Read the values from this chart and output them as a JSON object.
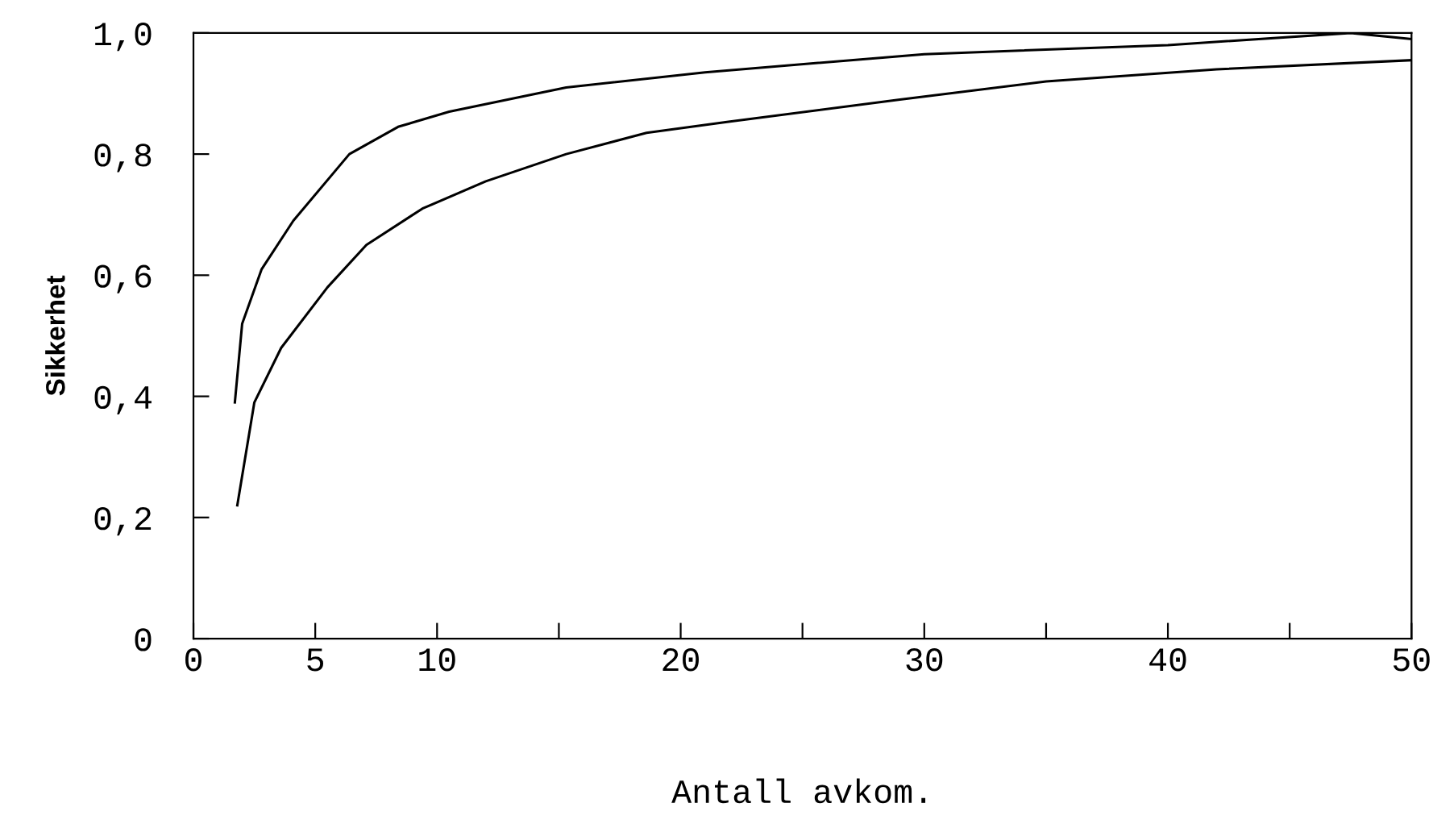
{
  "chart_data": {
    "type": "line",
    "xlabel": "Antall avkom.",
    "ylabel": "Sikkerhet",
    "xlim": [
      0,
      50
    ],
    "ylim": [
      0,
      1.0
    ],
    "xticks": [
      0,
      5,
      10,
      {
        "value": 15,
        "label": null
      },
      20,
      {
        "value": 25,
        "label": null
      },
      30,
      {
        "value": 35,
        "label": null
      },
      40,
      {
        "value": 45,
        "label": null
      },
      50
    ],
    "yticks": [
      {
        "value": 0,
        "label": "0"
      },
      {
        "value": 0.2,
        "label": "0,2"
      },
      {
        "value": 0.4,
        "label": "0,4"
      },
      {
        "value": 0.6,
        "label": "0,6"
      },
      {
        "value": 0.8,
        "label": "0,8"
      },
      {
        "value": 1.0,
        "label": "1,0"
      }
    ],
    "grid": false,
    "legend": false,
    "marker": "none",
    "line_style": "solid",
    "series": [
      {
        "color": "#000000",
        "x": [
          1.7,
          2,
          2.8,
          4.1,
          6.4,
          8.4,
          10.5,
          15.3,
          21,
          30,
          40,
          47.5,
          50
        ],
        "values": [
          0.39,
          0.52,
          0.61,
          0.69,
          0.8,
          0.845,
          0.87,
          0.91,
          0.935,
          0.965,
          0.98,
          1.0,
          0.99
        ]
      },
      {
        "color": "#000000",
        "x": [
          1.8,
          2.5,
          3.6,
          5.5,
          7.1,
          9.4,
          12,
          15.3,
          18.6,
          21.9,
          29,
          35,
          42,
          50
        ],
        "values": [
          0.22,
          0.39,
          0.48,
          0.58,
          0.65,
          0.71,
          0.755,
          0.8,
          0.835,
          0.853,
          0.89,
          0.92,
          0.94,
          0.955
        ]
      }
    ]
  }
}
